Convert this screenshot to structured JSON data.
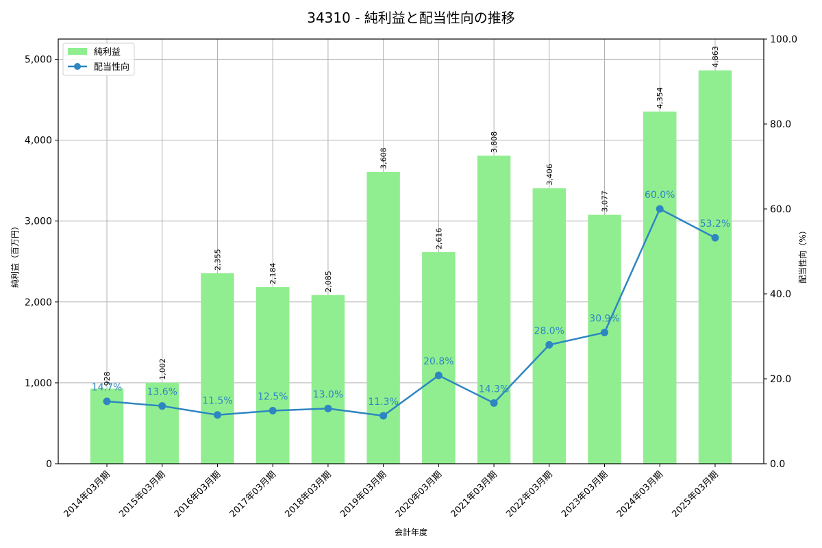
{
  "title": "34310 - 純利益と配当性向の推移",
  "colors": {
    "bar": "#90EE90",
    "line": "#2E86C1",
    "grid": "#b0b0b0",
    "axis": "#000000"
  },
  "legend": {
    "items": [
      {
        "label": "純利益",
        "type": "bar"
      },
      {
        "label": "配当性向",
        "type": "line"
      }
    ]
  },
  "chart_data": {
    "type": "bar+line",
    "title": "34310 - 純利益と配当性向の推移",
    "xlabel": "会計年度",
    "ylabel": "純利益（百万円）",
    "y2label": "配当性向（%）",
    "categories": [
      "2014年03月期",
      "2015年03月期",
      "2016年03月期",
      "2017年03月期",
      "2018年03月期",
      "2019年03月期",
      "2020年03月期",
      "2021年03月期",
      "2022年03月期",
      "2023年03月期",
      "2024年03月期",
      "2025年03月期"
    ],
    "series": [
      {
        "name": "純利益",
        "type": "bar",
        "axis": "left",
        "values": [
          928,
          1002,
          2355,
          2184,
          2085,
          3608,
          2616,
          3808,
          3406,
          3077,
          4354,
          4863
        ],
        "labels": [
          "928",
          "1,002",
          "2,355",
          "2,184",
          "2,085",
          "3,608",
          "2,616",
          "3,808",
          "3,406",
          "3,077",
          "4,354",
          "4,863"
        ]
      },
      {
        "name": "配当性向",
        "type": "line",
        "axis": "right",
        "values": [
          14.7,
          13.6,
          11.5,
          12.5,
          13.0,
          11.3,
          20.8,
          14.3,
          28.0,
          30.9,
          60.0,
          53.2
        ],
        "labels": [
          "14.7%",
          "13.6%",
          "11.5%",
          "12.5%",
          "13.0%",
          "11.3%",
          "20.8%",
          "14.3%",
          "28.0%",
          "30.9%",
          "60.0%",
          "53.2%"
        ]
      }
    ],
    "ylim": [
      0,
      5250
    ],
    "y2lim": [
      0,
      100
    ],
    "yticks": [
      0,
      1000,
      2000,
      3000,
      4000,
      5000
    ],
    "ytick_labels": [
      "0",
      "1,000",
      "2,000",
      "3,000",
      "4,000",
      "5,000"
    ],
    "y2ticks": [
      0,
      20,
      40,
      60,
      80,
      100
    ],
    "y2tick_labels": [
      "0.0",
      "20.0",
      "40.0",
      "60.0",
      "80.0",
      "100.0"
    ],
    "grid": true,
    "legend_position": "upper left"
  }
}
